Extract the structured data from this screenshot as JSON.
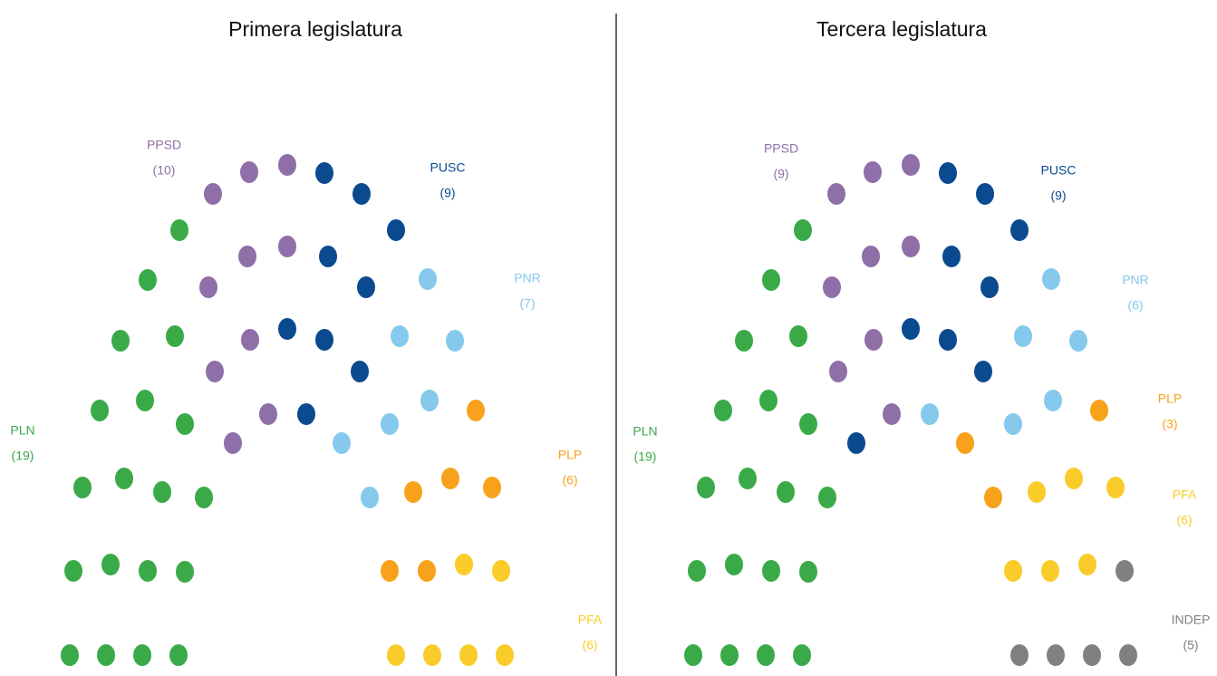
{
  "panels": [
    {
      "title": "Primera legislatura",
      "parties": [
        {
          "name": "PLN",
          "seats": 19,
          "seats_label": "(19)",
          "color": "#3aaa48"
        },
        {
          "name": "PPSD",
          "seats": 10,
          "seats_label": "(10)",
          "color": "#8e6fa8"
        },
        {
          "name": "PUSC",
          "seats": 9,
          "seats_label": "(9)",
          "color": "#0b4a8f"
        },
        {
          "name": "PNR",
          "seats": 7,
          "seats_label": "(7)",
          "color": "#86c9ec"
        },
        {
          "name": "PLP",
          "seats": 6,
          "seats_label": "(6)",
          "color": "#f7a21a"
        },
        {
          "name": "PFA",
          "seats": 6,
          "seats_label": "(6)",
          "color": "#f9cc2a"
        }
      ]
    },
    {
      "title": "Tercera legislatura",
      "parties": [
        {
          "name": "PLN",
          "seats": 19,
          "seats_label": "(19)",
          "color": "#3aaa48"
        },
        {
          "name": "PPSD",
          "seats": 9,
          "seats_label": "(9)",
          "color": "#8e6fa8"
        },
        {
          "name": "PUSC",
          "seats": 9,
          "seats_label": "(9)",
          "color": "#0b4a8f"
        },
        {
          "name": "PNR",
          "seats": 6,
          "seats_label": "(6)",
          "color": "#86c9ec"
        },
        {
          "name": "PLP",
          "seats": 3,
          "seats_label": "(3)",
          "color": "#f7a21a"
        },
        {
          "name": "PFA",
          "seats": 6,
          "seats_label": "(6)",
          "color": "#f9cc2a"
        },
        {
          "name": "INDEP",
          "seats": 5,
          "seats_label": "(5)",
          "color": "#808080"
        }
      ]
    }
  ]
}
